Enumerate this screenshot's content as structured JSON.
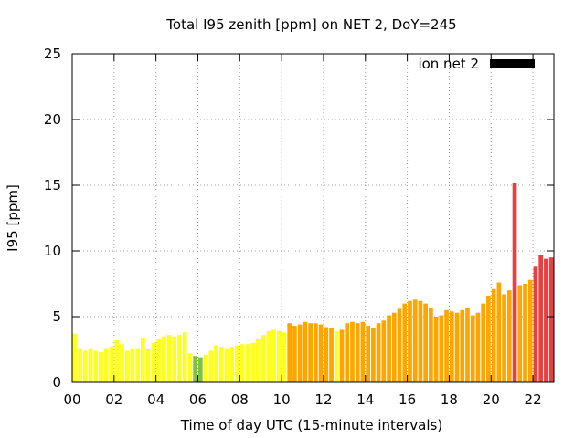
{
  "chart_data": {
    "type": "bar",
    "title": "Total I95 zenith [ppm] on NET 2, DoY=245",
    "xlabel": "Time of day UTC (15-minute intervals)",
    "ylabel": "I95 [ppm]",
    "xlim": [
      0,
      22.75
    ],
    "ylim": [
      0,
      25
    ],
    "x_ticks": [
      "00",
      "02",
      "04",
      "06",
      "08",
      "10",
      "12",
      "14",
      "16",
      "18",
      "20",
      "22"
    ],
    "y_ticks": [
      "0",
      "5",
      "10",
      "15",
      "20",
      "25"
    ],
    "grid": true,
    "legend": {
      "label": "ion net 2",
      "color": "#000000",
      "placement": "top-right"
    },
    "colors": {
      "low": "#ffff1e",
      "very_low": "#7ec242",
      "medium": "#ffa500",
      "high": "#e84040"
    },
    "interval_hours": 0.25,
    "series": [
      {
        "name": "ion net 2",
        "x": [
          0.0,
          0.25,
          0.5,
          0.75,
          1.0,
          1.25,
          1.5,
          1.75,
          2.0,
          2.25,
          2.5,
          2.75,
          3.0,
          3.25,
          3.5,
          3.75,
          4.0,
          4.25,
          4.5,
          4.75,
          5.0,
          5.25,
          5.5,
          5.75,
          6.0,
          6.25,
          6.5,
          6.75,
          7.0,
          7.25,
          7.5,
          7.75,
          8.0,
          8.25,
          8.5,
          8.75,
          9.0,
          9.25,
          9.5,
          9.75,
          10.0,
          10.25,
          10.5,
          10.75,
          11.0,
          11.25,
          11.5,
          11.75,
          12.0,
          12.25,
          12.5,
          12.75,
          13.0,
          13.25,
          13.5,
          13.75,
          14.0,
          14.25,
          14.5,
          14.75,
          15.0,
          15.25,
          15.5,
          15.75,
          16.0,
          16.25,
          16.5,
          16.75,
          17.0,
          17.25,
          17.5,
          17.75,
          18.0,
          18.25,
          18.5,
          18.75,
          19.0,
          19.25,
          19.5,
          19.75,
          20.0,
          20.25,
          20.5,
          20.75,
          21.0,
          21.25,
          21.5,
          21.75,
          22.0,
          22.25,
          22.5,
          22.75
        ],
        "values": [
          3.7,
          2.6,
          2.4,
          2.6,
          2.4,
          2.3,
          2.6,
          2.7,
          3.2,
          2.9,
          2.4,
          2.6,
          2.6,
          3.4,
          2.5,
          3.0,
          3.3,
          3.5,
          3.6,
          3.5,
          3.6,
          3.8,
          2.2,
          2.0,
          1.9,
          2.1,
          2.4,
          2.8,
          2.7,
          2.6,
          2.7,
          2.8,
          2.9,
          2.9,
          3.0,
          3.3,
          3.6,
          3.9,
          4.0,
          3.9,
          3.8,
          4.5,
          4.3,
          4.4,
          4.6,
          4.5,
          4.5,
          4.4,
          4.2,
          4.1,
          3.9,
          4.0,
          4.5,
          4.6,
          4.5,
          4.6,
          4.3,
          4.1,
          4.5,
          4.7,
          5.1,
          5.3,
          5.6,
          6.0,
          6.2,
          6.3,
          6.2,
          6.0,
          5.7,
          5.0,
          5.1,
          5.5,
          5.4,
          5.3,
          5.5,
          5.7,
          5.1,
          5.3,
          6.0,
          6.6,
          7.1,
          7.6,
          6.7,
          7.0,
          15.2,
          7.4,
          7.5,
          7.8,
          8.8,
          9.7,
          9.4,
          9.5
        ],
        "levels": [
          "low",
          "low",
          "low",
          "low",
          "low",
          "low",
          "low",
          "low",
          "low",
          "low",
          "low",
          "low",
          "low",
          "low",
          "low",
          "low",
          "low",
          "low",
          "low",
          "low",
          "low",
          "low",
          "low",
          "very_low",
          "very_low",
          "low",
          "low",
          "low",
          "low",
          "low",
          "low",
          "low",
          "low",
          "low",
          "low",
          "low",
          "low",
          "low",
          "low",
          "low",
          "low",
          "medium",
          "medium",
          "medium",
          "medium",
          "medium",
          "medium",
          "medium",
          "medium",
          "medium",
          "low",
          "medium",
          "medium",
          "medium",
          "medium",
          "medium",
          "medium",
          "medium",
          "medium",
          "medium",
          "medium",
          "medium",
          "medium",
          "medium",
          "medium",
          "medium",
          "medium",
          "medium",
          "medium",
          "medium",
          "medium",
          "medium",
          "medium",
          "medium",
          "medium",
          "medium",
          "medium",
          "medium",
          "medium",
          "medium",
          "medium",
          "medium",
          "medium",
          "medium",
          "high",
          "medium",
          "medium",
          "medium",
          "high",
          "high",
          "high",
          "high"
        ]
      }
    ]
  }
}
